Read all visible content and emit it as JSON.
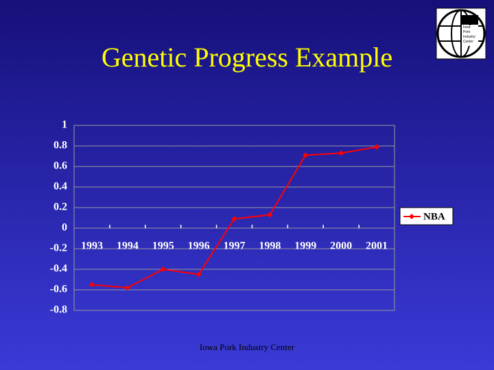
{
  "title": "Genetic Progress Example",
  "footer": "Iowa Pork Industry Center",
  "logo": {
    "lines": [
      "Iowa",
      "Pork",
      "Industry",
      "Center"
    ]
  },
  "chart_data": {
    "type": "line",
    "categories": [
      "1993",
      "1994",
      "1995",
      "1996",
      "1997",
      "1998",
      "1999",
      "2000",
      "2001"
    ],
    "series": [
      {
        "name": "NBA",
        "color": "#ff0000",
        "values": [
          -0.55,
          -0.58,
          -0.4,
          -0.45,
          0.09,
          0.13,
          0.71,
          0.73,
          0.79
        ]
      }
    ],
    "ylim": [
      -0.8,
      1
    ],
    "yticks": [
      -0.8,
      -0.6,
      -0.4,
      -0.2,
      0,
      0.2,
      0.4,
      0.6,
      0.8,
      1
    ],
    "grid": true,
    "legend": "right"
  }
}
